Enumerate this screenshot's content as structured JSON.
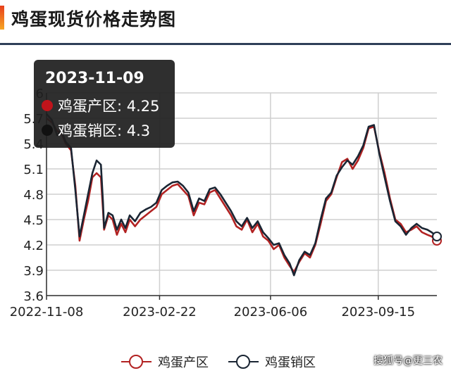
{
  "header": {
    "title": "鸡蛋现货价格走势图"
  },
  "watermark": "搜狐号@更三农",
  "tooltip": {
    "date": "2023-11-09",
    "rows": [
      {
        "label": "鸡蛋产区: 4.25",
        "color": "#c0141b"
      },
      {
        "label": "鸡蛋销区: 4.3",
        "color": "#111111"
      }
    ]
  },
  "chart_data": {
    "type": "line",
    "x_type": "date",
    "x_range": [
      "2022-11-08",
      "2023-11-09"
    ],
    "x_ticks": [
      "2022-11-08",
      "2023-02-22",
      "2023-06-06",
      "2023-09-15"
    ],
    "ylim": [
      3.6,
      6.0
    ],
    "y_ticks": [
      "3.6",
      "3.9",
      "4.2",
      "4.5",
      "4.8",
      "5.1",
      "5.4",
      "5.7",
      "6"
    ],
    "grid": true,
    "legend_position": "bottom",
    "series": [
      {
        "name": "鸡蛋产区",
        "color": "#b22222",
        "points": [
          [
            "2022-11-08",
            5.7
          ],
          [
            "2022-11-13",
            5.65
          ],
          [
            "2022-11-18",
            5.55
          ],
          [
            "2022-11-22",
            5.52
          ],
          [
            "2022-11-26",
            5.4
          ],
          [
            "2022-12-01",
            5.32
          ],
          [
            "2022-12-05",
            4.9
          ],
          [
            "2022-12-09",
            4.25
          ],
          [
            "2022-12-13",
            4.5
          ],
          [
            "2022-12-17",
            4.72
          ],
          [
            "2022-12-21",
            5.0
          ],
          [
            "2022-12-25",
            5.05
          ],
          [
            "2022-12-29",
            5.0
          ],
          [
            "2022-12-31",
            4.6
          ],
          [
            "2023-01-01",
            4.38
          ],
          [
            "2023-01-05",
            4.55
          ],
          [
            "2023-01-09",
            4.5
          ],
          [
            "2023-01-13",
            4.32
          ],
          [
            "2023-01-17",
            4.45
          ],
          [
            "2023-01-21",
            4.35
          ],
          [
            "2023-01-25",
            4.5
          ],
          [
            "2023-01-30",
            4.42
          ],
          [
            "2023-02-04",
            4.5
          ],
          [
            "2023-02-09",
            4.55
          ],
          [
            "2023-02-14",
            4.6
          ],
          [
            "2023-02-19",
            4.65
          ],
          [
            "2023-02-24",
            4.8
          ],
          [
            "2023-03-01",
            4.85
          ],
          [
            "2023-03-06",
            4.9
          ],
          [
            "2023-03-11",
            4.92
          ],
          [
            "2023-03-16",
            4.85
          ],
          [
            "2023-03-21",
            4.78
          ],
          [
            "2023-03-26",
            4.55
          ],
          [
            "2023-03-31",
            4.7
          ],
          [
            "2023-04-05",
            4.68
          ],
          [
            "2023-04-10",
            4.82
          ],
          [
            "2023-04-15",
            4.85
          ],
          [
            "2023-04-20",
            4.75
          ],
          [
            "2023-04-25",
            4.65
          ],
          [
            "2023-04-30",
            4.55
          ],
          [
            "2023-05-05",
            4.42
          ],
          [
            "2023-05-10",
            4.38
          ],
          [
            "2023-05-15",
            4.5
          ],
          [
            "2023-05-20",
            4.35
          ],
          [
            "2023-05-25",
            4.45
          ],
          [
            "2023-05-30",
            4.3
          ],
          [
            "2023-06-04",
            4.25
          ],
          [
            "2023-06-09",
            4.15
          ],
          [
            "2023-06-14",
            4.2
          ],
          [
            "2023-06-19",
            4.05
          ],
          [
            "2023-06-24",
            3.95
          ],
          [
            "2023-06-28",
            3.88
          ],
          [
            "2023-07-03",
            4.0
          ],
          [
            "2023-07-08",
            4.1
          ],
          [
            "2023-07-13",
            4.05
          ],
          [
            "2023-07-18",
            4.2
          ],
          [
            "2023-07-23",
            4.45
          ],
          [
            "2023-07-28",
            4.72
          ],
          [
            "2023-08-02",
            4.8
          ],
          [
            "2023-08-07",
            5.0
          ],
          [
            "2023-08-12",
            5.18
          ],
          [
            "2023-08-17",
            5.22
          ],
          [
            "2023-08-22",
            5.1
          ],
          [
            "2023-08-27",
            5.2
          ],
          [
            "2023-09-01",
            5.35
          ],
          [
            "2023-09-06",
            5.58
          ],
          [
            "2023-09-11",
            5.6
          ],
          [
            "2023-09-16",
            5.3
          ],
          [
            "2023-09-21",
            5.05
          ],
          [
            "2023-09-26",
            4.75
          ],
          [
            "2023-10-01",
            4.5
          ],
          [
            "2023-10-06",
            4.45
          ],
          [
            "2023-10-11",
            4.35
          ],
          [
            "2023-10-16",
            4.38
          ],
          [
            "2023-10-21",
            4.42
          ],
          [
            "2023-10-26",
            4.35
          ],
          [
            "2023-10-31",
            4.32
          ],
          [
            "2023-11-04",
            4.3
          ],
          [
            "2023-11-09",
            4.25
          ]
        ]
      },
      {
        "name": "鸡蛋销区",
        "color": "#1a2533",
        "points": [
          [
            "2022-11-08",
            5.75
          ],
          [
            "2022-11-13",
            5.68
          ],
          [
            "2022-11-18",
            5.5
          ],
          [
            "2022-11-22",
            5.55
          ],
          [
            "2022-11-26",
            5.42
          ],
          [
            "2022-12-01",
            5.35
          ],
          [
            "2022-12-05",
            4.85
          ],
          [
            "2022-12-09",
            4.3
          ],
          [
            "2022-12-13",
            4.55
          ],
          [
            "2022-12-17",
            4.8
          ],
          [
            "2022-12-21",
            5.05
          ],
          [
            "2022-12-25",
            5.2
          ],
          [
            "2022-12-29",
            5.15
          ],
          [
            "2022-12-31",
            4.7
          ],
          [
            "2023-01-01",
            4.4
          ],
          [
            "2023-01-05",
            4.58
          ],
          [
            "2023-01-09",
            4.55
          ],
          [
            "2023-01-13",
            4.38
          ],
          [
            "2023-01-17",
            4.5
          ],
          [
            "2023-01-21",
            4.4
          ],
          [
            "2023-01-25",
            4.55
          ],
          [
            "2023-01-30",
            4.48
          ],
          [
            "2023-02-04",
            4.58
          ],
          [
            "2023-02-09",
            4.62
          ],
          [
            "2023-02-14",
            4.65
          ],
          [
            "2023-02-19",
            4.7
          ],
          [
            "2023-02-24",
            4.85
          ],
          [
            "2023-03-01",
            4.9
          ],
          [
            "2023-03-06",
            4.94
          ],
          [
            "2023-03-11",
            4.95
          ],
          [
            "2023-03-16",
            4.9
          ],
          [
            "2023-03-21",
            4.82
          ],
          [
            "2023-03-26",
            4.6
          ],
          [
            "2023-03-31",
            4.75
          ],
          [
            "2023-04-05",
            4.72
          ],
          [
            "2023-04-10",
            4.86
          ],
          [
            "2023-04-15",
            4.88
          ],
          [
            "2023-04-20",
            4.8
          ],
          [
            "2023-04-25",
            4.7
          ],
          [
            "2023-04-30",
            4.6
          ],
          [
            "2023-05-05",
            4.48
          ],
          [
            "2023-05-10",
            4.42
          ],
          [
            "2023-05-15",
            4.52
          ],
          [
            "2023-05-20",
            4.4
          ],
          [
            "2023-05-25",
            4.48
          ],
          [
            "2023-05-30",
            4.35
          ],
          [
            "2023-06-04",
            4.28
          ],
          [
            "2023-06-09",
            4.2
          ],
          [
            "2023-06-14",
            4.22
          ],
          [
            "2023-06-19",
            4.08
          ],
          [
            "2023-06-24",
            3.98
          ],
          [
            "2023-06-28",
            3.84
          ],
          [
            "2023-07-03",
            4.02
          ],
          [
            "2023-07-08",
            4.12
          ],
          [
            "2023-07-13",
            4.08
          ],
          [
            "2023-07-18",
            4.22
          ],
          [
            "2023-07-23",
            4.5
          ],
          [
            "2023-07-28",
            4.75
          ],
          [
            "2023-08-02",
            4.82
          ],
          [
            "2023-08-07",
            5.02
          ],
          [
            "2023-08-12",
            5.12
          ],
          [
            "2023-08-17",
            5.2
          ],
          [
            "2023-08-22",
            5.15
          ],
          [
            "2023-08-27",
            5.25
          ],
          [
            "2023-09-01",
            5.38
          ],
          [
            "2023-09-06",
            5.6
          ],
          [
            "2023-09-11",
            5.62
          ],
          [
            "2023-09-16",
            5.28
          ],
          [
            "2023-09-21",
            5.0
          ],
          [
            "2023-09-26",
            4.72
          ],
          [
            "2023-10-01",
            4.48
          ],
          [
            "2023-10-06",
            4.42
          ],
          [
            "2023-10-11",
            4.32
          ],
          [
            "2023-10-16",
            4.4
          ],
          [
            "2023-10-21",
            4.45
          ],
          [
            "2023-10-26",
            4.4
          ],
          [
            "2023-10-31",
            4.38
          ],
          [
            "2023-11-04",
            4.35
          ],
          [
            "2023-11-09",
            4.3
          ]
        ]
      }
    ]
  }
}
